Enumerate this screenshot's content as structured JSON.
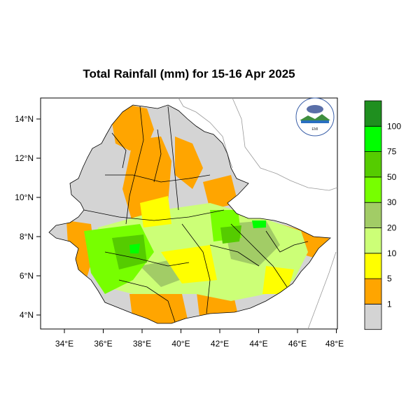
{
  "title": "Total Rainfall (mm) for 15-16 Apr 2025",
  "x_axis_ticks": [
    "34°E",
    "36°E",
    "38°E",
    "40°E",
    "42°E",
    "44°E",
    "46°E",
    "48°E"
  ],
  "y_axis_ticks": [
    "14°N",
    "12°N",
    "10°N",
    "8°N",
    "6°N",
    "4°N"
  ],
  "legend": {
    "labels": [
      "1",
      "5",
      "10",
      "20",
      "30",
      "50",
      "75",
      "100"
    ],
    "colors": [
      "#d4d4d4",
      "#ffa500",
      "#ffff00",
      "#ccff77",
      "#a2cc66",
      "#77ff00",
      "#55cc00",
      "#00ff00",
      "#1f8f1f"
    ]
  },
  "logo": {
    "org": "Ethiopian Meteorology Institute",
    "text": "EMI"
  },
  "chart_data": {
    "type": "heatmap",
    "title": "Total Rainfall (mm) for 15-16 Apr 2025",
    "xlim": [
      33,
      48.2
    ],
    "ylim": [
      3.2,
      15.1
    ],
    "x_ticks": [
      34,
      36,
      38,
      40,
      42,
      44,
      46,
      48
    ],
    "y_ticks": [
      14,
      12,
      10,
      8,
      6,
      4
    ],
    "levels": [
      1,
      5,
      10,
      20,
      30,
      50,
      75,
      100
    ],
    "legend_placement": "right"
  }
}
